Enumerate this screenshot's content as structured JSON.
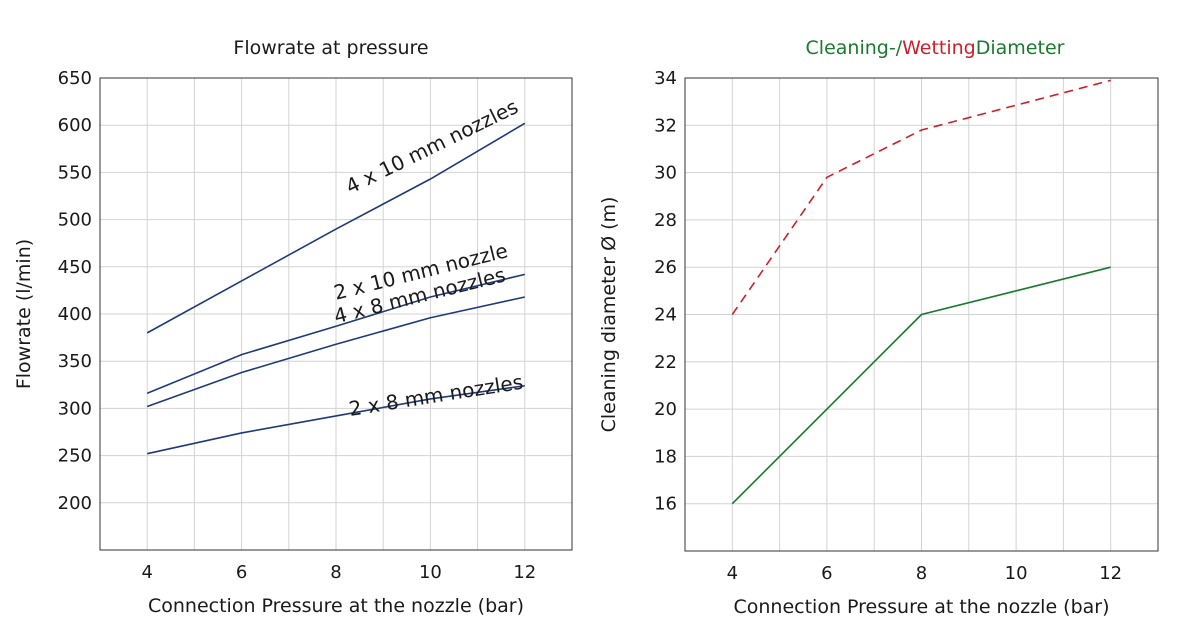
{
  "chart_data": [
    {
      "type": "line",
      "title": "Flowrate at pressure",
      "xlabel": "Connection Pressure at the nozzle (bar)",
      "ylabel": "Flowrate (l/min)",
      "xlim": [
        3,
        13
      ],
      "ylim": [
        150,
        650
      ],
      "x_ticks": [
        4,
        6,
        8,
        10,
        12
      ],
      "y_ticks": [
        200,
        250,
        300,
        350,
        400,
        450,
        500,
        550,
        600,
        650
      ],
      "grid": true,
      "line_color": "#1f3a7a",
      "series": [
        {
          "name": "4 x 10 mm nozzles",
          "x": [
            4,
            6,
            8,
            10,
            12
          ],
          "values": [
            380,
            435,
            490,
            543,
            602
          ]
        },
        {
          "name": "2 x 10 mm nozzle",
          "x": [
            4,
            6,
            8,
            10,
            12
          ],
          "values": [
            316,
            357,
            387,
            418,
            442
          ]
        },
        {
          "name": "4 x 8 mm nozzles",
          "x": [
            4,
            6,
            8,
            10,
            12
          ],
          "values": [
            302,
            338,
            368,
            396,
            418
          ]
        },
        {
          "name": "2 x 8 mm nozzles",
          "x": [
            4,
            6,
            8,
            10,
            12
          ],
          "values": [
            252,
            274,
            292,
            310,
            324
          ]
        }
      ]
    },
    {
      "type": "line",
      "title_parts": [
        {
          "text": "Cleaning-/",
          "color": "#1b7a2f"
        },
        {
          "text": "Wetting",
          "color": "#cc1f2b"
        },
        {
          "text": "Diameter",
          "color": "#1b7a2f"
        }
      ],
      "xlabel": "Connection Pressure at the nozzle (bar)",
      "ylabel": "Cleaning diameter Ø (m)",
      "xlim": [
        3,
        13
      ],
      "ylim": [
        14,
        34
      ],
      "x_ticks": [
        4,
        6,
        8,
        10,
        12
      ],
      "y_ticks": [
        16,
        18,
        20,
        22,
        24,
        26,
        28,
        30,
        32,
        34
      ],
      "grid": true,
      "series": [
        {
          "x": [
            4,
            6,
            8,
            12
          ],
          "values": [
            24,
            29.8,
            31.8,
            33.9
          ],
          "color": "#cc1f2b",
          "dashed": true
        },
        {
          "x": [
            4,
            8,
            12
          ],
          "values": [
            16,
            24,
            26
          ],
          "color": "#1b7a2f",
          "dashed": false
        }
      ]
    }
  ]
}
